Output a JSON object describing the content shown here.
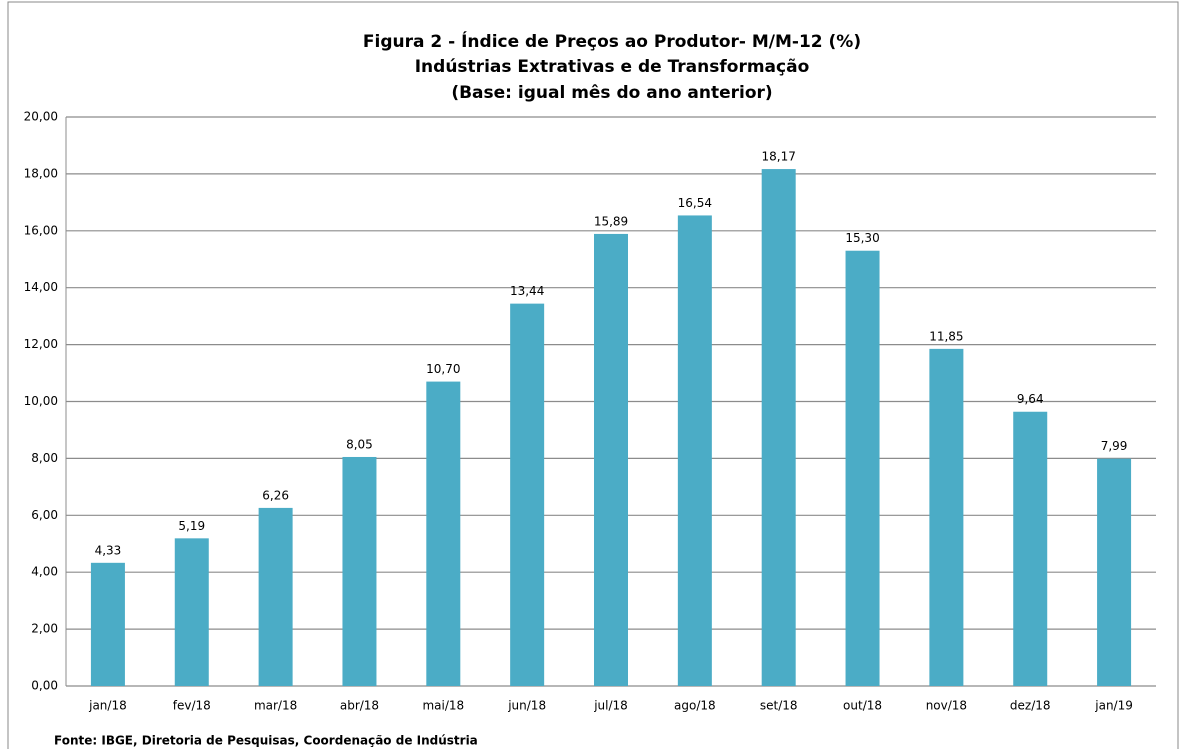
{
  "chart_data": {
    "type": "bar",
    "title": "Figura 2 - Índice de Preços ao Produtor- M/M-12 (%)",
    "subtitle": "Indústrias Extrativas e de Transformação",
    "subtitle2": "(Base: igual mês do ano anterior)",
    "source": "Fonte: IBGE, Diretoria de Pesquisas, Coordenação de Indústria",
    "categories": [
      "jan/18",
      "fev/18",
      "mar/18",
      "abr/18",
      "mai/18",
      "jun/18",
      "jul/18",
      "ago/18",
      "set/18",
      "out/18",
      "nov/18",
      "dez/18",
      "jan/19"
    ],
    "values": [
      4.33,
      5.19,
      6.26,
      8.05,
      10.7,
      13.44,
      15.89,
      16.54,
      18.17,
      15.3,
      11.85,
      9.64,
      7.99
    ],
    "value_labels": [
      "4,33",
      "5,19",
      "6,26",
      "8,05",
      "10,70",
      "13,44",
      "15,89",
      "16,54",
      "18,17",
      "15,30",
      "11,85",
      "9,64",
      "7,99"
    ],
    "color": "#4bacc6",
    "ylim": [
      0,
      20
    ],
    "yticks": [
      {
        "value": 0,
        "label": "0,00"
      },
      {
        "value": 2,
        "label": "2,00"
      },
      {
        "value": 4,
        "label": "4,00"
      },
      {
        "value": 6,
        "label": "6,00"
      },
      {
        "value": 8,
        "label": "8,00"
      },
      {
        "value": 10,
        "label": "10,00"
      },
      {
        "value": 12,
        "label": "12,00"
      },
      {
        "value": 14,
        "label": "14,00"
      },
      {
        "value": 16,
        "label": "16,00"
      },
      {
        "value": 18,
        "label": "18,00"
      },
      {
        "value": 20,
        "label": "20,00"
      }
    ],
    "grid": true
  }
}
